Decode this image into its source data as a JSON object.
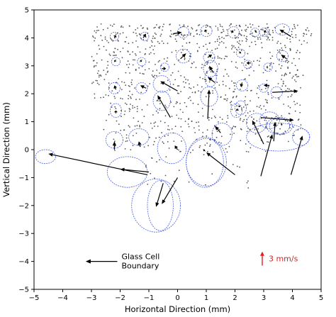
{
  "chart_data": {
    "type": "scatter",
    "title": "",
    "xlabel": "Horizontal Direction (mm)",
    "ylabel": "Vertical Direction (mm)",
    "xlim": [
      -5,
      5
    ],
    "ylim": [
      -5,
      5
    ],
    "xticks": [
      -5,
      -4,
      -3,
      -2,
      -1,
      0,
      1,
      2,
      3,
      4,
      5
    ],
    "yticks": [
      -5,
      -4,
      -3,
      -2,
      -1,
      0,
      1,
      2,
      3,
      4,
      5
    ],
    "grid": false,
    "colors": {
      "points": "#555555",
      "ellipses": "#4a5ee0",
      "arrows": "#000000",
      "scale_arrow": "#e02020"
    },
    "annotations": {
      "boundary_label_line1": "Glass Cell",
      "boundary_label_line2": "Boundary",
      "boundary_arrow": {
        "x": [
          -2.1,
          -3.2
        ],
        "y": [
          -4.0,
          -4.0
        ]
      },
      "scale_label": "3 mm/s",
      "scale_arrow": {
        "x": [
          2.95,
          2.95
        ],
        "y": [
          -4.15,
          -3.65
        ]
      }
    },
    "vectors": [
      {
        "x": -4.65,
        "y": -0.15,
        "dx": 0,
        "dy": 0,
        "rx": 0.4,
        "ry": 0.25
      },
      {
        "x": -4.5,
        "y": -0.1,
        "dx": 0,
        "dy": 0,
        "rx": 0,
        "ry": 0
      }
    ],
    "ellipse_vectors": [
      {
        "x0": -1.05,
        "y0": -0.9,
        "x1": -4.5,
        "y1": -0.15,
        "ex": -4.6,
        "ey": -0.25,
        "rx": 0.35,
        "ry": 0.25
      },
      {
        "x0": -1.0,
        "y0": -0.8,
        "x1": -2.0,
        "y1": -0.7,
        "ex": -1.75,
        "ey": -0.8,
        "rx": 0.7,
        "ry": 0.55
      },
      {
        "x0": -0.5,
        "y0": -1.2,
        "x1": -0.75,
        "y1": -2.05,
        "ex": -0.75,
        "ey": -2.0,
        "rx": 0.85,
        "ry": 0.95
      },
      {
        "x0": 0.0,
        "y0": -1.0,
        "x1": -0.55,
        "y1": -1.95,
        "ex": -0.6,
        "ey": -2.0,
        "rx": 0.45,
        "ry": 0.9
      },
      {
        "x0": 2.0,
        "y0": -0.9,
        "x1": 1.0,
        "y1": -0.1,
        "ex": 1.0,
        "ey": -0.45,
        "rx": 0.7,
        "ry": 0.85
      },
      {
        "x0": 0.9,
        "y0": -0.05,
        "x1": 0.95,
        "y1": 0.0,
        "ex": 0.95,
        "ey": -0.45,
        "rx": 0.65,
        "ry": 0.9
      },
      {
        "x0": 0.0,
        "y0": 0.0,
        "x1": -0.1,
        "y1": 0.15,
        "ex": -0.2,
        "ey": 0.05,
        "rx": 0.5,
        "ry": 0.55
      },
      {
        "x0": -1.3,
        "y0": 0.1,
        "x1": -1.35,
        "y1": 0.3,
        "ex": -1.35,
        "ey": 0.45,
        "rx": 0.35,
        "ry": 0.3
      },
      {
        "x0": -2.2,
        "y0": 0.0,
        "x1": -2.2,
        "y1": 0.3,
        "ex": -2.2,
        "ey": 0.35,
        "rx": 0.3,
        "ry": 0.3
      },
      {
        "x0": 1.5,
        "y0": 0.6,
        "x1": 1.3,
        "y1": 0.85,
        "ex": 1.55,
        "ey": 0.55,
        "rx": 0.35,
        "ry": 0.4
      },
      {
        "x0": 2.9,
        "y0": -0.95,
        "x1": 3.3,
        "y1": 0.55,
        "ex": 3.5,
        "ey": 0.45,
        "rx": 1.1,
        "ry": 0.5
      },
      {
        "x0": 3.95,
        "y0": -0.9,
        "x1": 4.35,
        "y1": 0.5,
        "ex": 4.3,
        "ey": 0.45,
        "rx": 0.3,
        "ry": 0.3
      },
      {
        "x0": 3.0,
        "y0": 0.2,
        "x1": 2.6,
        "y1": 1.05,
        "ex": 2.75,
        "ey": 0.95,
        "rx": 0.35,
        "ry": 0.35
      },
      {
        "x0": 3.35,
        "y0": 0.3,
        "x1": 3.4,
        "y1": 1.0,
        "ex": 3.5,
        "ey": 0.85,
        "rx": 0.4,
        "ry": 0.3
      },
      {
        "x0": 3.65,
        "y0": 0.9,
        "x1": 3.6,
        "y1": 0.9,
        "ex": 3.6,
        "ey": 0.85,
        "rx": 0.4,
        "ry": 0.3
      },
      {
        "x0": 2.9,
        "y0": 1.15,
        "x1": 4.05,
        "y1": 1.05,
        "ex": 3.2,
        "ey": 1.05,
        "rx": 0.35,
        "ry": 0.3
      },
      {
        "x0": -2.15,
        "y0": 1.3,
        "x1": -2.15,
        "y1": 1.4,
        "ex": -2.15,
        "ey": 1.4,
        "rx": 0.2,
        "ry": 0.25
      },
      {
        "x0": 2.1,
        "y0": 1.4,
        "x1": 2.05,
        "y1": 1.45,
        "ex": 2.05,
        "ey": 1.4,
        "rx": 0.2,
        "ry": 0.25
      },
      {
        "x0": -0.25,
        "y0": 1.15,
        "x1": -0.7,
        "y1": 1.95,
        "ex": -0.55,
        "ey": 1.75,
        "rx": 0.3,
        "ry": 0.35
      },
      {
        "x0": 1.05,
        "y0": 1.1,
        "x1": 1.1,
        "y1": 2.15,
        "ex": 1.1,
        "ey": 1.9,
        "rx": 0.3,
        "ry": 0.35
      },
      {
        "x0": 0.0,
        "y0": 2.1,
        "x1": -0.6,
        "y1": 2.45,
        "ex": -0.55,
        "ey": 2.35,
        "rx": 0.3,
        "ry": 0.3
      },
      {
        "x0": 1.3,
        "y0": 2.4,
        "x1": 1.05,
        "y1": 2.6,
        "ex": 1.15,
        "ey": 2.55,
        "rx": 0.2,
        "ry": 0.3
      },
      {
        "x0": -1.1,
        "y0": 2.2,
        "x1": -1.3,
        "y1": 2.3,
        "ex": -1.25,
        "ey": 2.2,
        "rx": 0.2,
        "ry": 0.2
      },
      {
        "x0": -2.15,
        "y0": 2.15,
        "x1": -2.2,
        "y1": 2.3,
        "ex": -2.2,
        "ey": 2.2,
        "rx": 0.2,
        "ry": 0.2
      },
      {
        "x0": 2.25,
        "y0": 2.4,
        "x1": 2.2,
        "y1": 2.25,
        "ex": 2.25,
        "ey": 2.3,
        "rx": 0.2,
        "ry": 0.2
      },
      {
        "x0": 3.2,
        "y0": 2.3,
        "x1": 3.0,
        "y1": 2.3,
        "ex": 3.0,
        "ey": 2.2,
        "rx": 0.15,
        "ry": 0.15
      },
      {
        "x0": 3.3,
        "y0": 2.05,
        "x1": 4.2,
        "y1": 2.1,
        "ex": 3.45,
        "ey": 2.05,
        "rx": 0.2,
        "ry": 0.2
      },
      {
        "x0": 2.15,
        "y0": 1.55,
        "x1": 2.15,
        "y1": 1.55,
        "ex": 2.2,
        "ey": 1.5,
        "rx": 0.2,
        "ry": 0.25
      },
      {
        "x0": 1.25,
        "y0": 2.75,
        "x1": 1.1,
        "y1": 3.0,
        "ex": 1.15,
        "ey": 2.9,
        "rx": 0.25,
        "ry": 0.3
      },
      {
        "x0": -2.15,
        "y0": 3.15,
        "x1": -2.2,
        "y1": 3.2,
        "ex": -2.15,
        "ey": 3.15,
        "rx": 0.15,
        "ry": 0.15
      },
      {
        "x0": -1.25,
        "y0": 3.15,
        "x1": -1.3,
        "y1": 3.2,
        "ex": -1.25,
        "ey": 3.15,
        "rx": 0.15,
        "ry": 0.15
      },
      {
        "x0": -0.55,
        "y0": 2.9,
        "x1": -0.4,
        "y1": 2.9,
        "ex": -0.45,
        "ey": 2.95,
        "rx": 0.15,
        "ry": 0.15
      },
      {
        "x0": 0.1,
        "y0": 3.25,
        "x1": 0.3,
        "y1": 3.45,
        "ex": 0.2,
        "ey": 3.35,
        "rx": 0.25,
        "ry": 0.25
      },
      {
        "x0": 1.05,
        "y0": 3.3,
        "x1": 1.2,
        "y1": 3.4,
        "ex": 1.1,
        "ey": 3.3,
        "rx": 0.2,
        "ry": 0.2
      },
      {
        "x0": 2.55,
        "y0": 3.1,
        "x1": 2.4,
        "y1": 3.1,
        "ex": 2.45,
        "ey": 3.05,
        "rx": 0.15,
        "ry": 0.15
      },
      {
        "x0": 3.15,
        "y0": 2.95,
        "x1": 3.1,
        "y1": 2.95,
        "ex": 3.15,
        "ey": 2.95,
        "rx": 0.15,
        "ry": 0.15
      },
      {
        "x0": 2.15,
        "y0": 3.45,
        "x1": 2.2,
        "y1": 3.5,
        "ex": 2.2,
        "ey": 3.45,
        "rx": 0.15,
        "ry": 0.15
      },
      {
        "x0": 3.8,
        "y0": 3.25,
        "x1": 3.6,
        "y1": 3.4,
        "ex": 3.65,
        "ey": 3.35,
        "rx": 0.2,
        "ry": 0.2
      },
      {
        "x0": -2.2,
        "y0": 4.0,
        "x1": -2.15,
        "y1": 4.1,
        "ex": -2.2,
        "ey": 4.05,
        "rx": 0.15,
        "ry": 0.15
      },
      {
        "x0": -1.2,
        "y0": 4.0,
        "x1": -1.1,
        "y1": 4.15,
        "ex": -1.15,
        "ey": 4.05,
        "rx": 0.15,
        "ry": 0.15
      },
      {
        "x0": -0.15,
        "y0": 4.15,
        "x1": 0.15,
        "y1": 4.2,
        "ex": 0.2,
        "ey": 4.2,
        "rx": 0.2,
        "ry": 0.2
      },
      {
        "x0": 1.0,
        "y0": 4.2,
        "x1": 0.95,
        "y1": 4.3,
        "ex": 1.0,
        "ey": 4.25,
        "rx": 0.2,
        "ry": 0.2
      },
      {
        "x0": 1.85,
        "y0": 4.25,
        "x1": 1.95,
        "y1": 4.2,
        "ex": 1.95,
        "ey": 4.2,
        "rx": 0.2,
        "ry": 0.2
      },
      {
        "x0": 2.75,
        "y0": 4.25,
        "x1": 2.7,
        "y1": 4.2,
        "ex": 2.7,
        "ey": 4.2,
        "rx": 0.15,
        "ry": 0.15
      },
      {
        "x0": 3.1,
        "y0": 4.2,
        "x1": 3.0,
        "y1": 4.25,
        "ex": 3.0,
        "ey": 4.2,
        "rx": 0.15,
        "ry": 0.15
      },
      {
        "x0": 3.95,
        "y0": 4.05,
        "x1": 3.55,
        "y1": 4.3,
        "ex": 3.65,
        "ey": 4.3,
        "rx": 0.25,
        "ry": 0.2
      }
    ],
    "particle_clusters": [
      {
        "xmin": -3.0,
        "xmax": 4.7,
        "ymin": 3.8,
        "ymax": 4.5,
        "n": 260
      },
      {
        "xmin": -3.0,
        "xmax": 4.4,
        "ymin": 2.9,
        "ymax": 3.8,
        "n": 180
      },
      {
        "xmin": -3.0,
        "xmax": 4.4,
        "ymin": 1.8,
        "ymax": 2.9,
        "n": 220
      },
      {
        "xmin": -2.6,
        "xmax": 4.3,
        "ymin": 0.7,
        "ymax": 1.8,
        "n": 200
      },
      {
        "xmin": -2.3,
        "xmax": 4.2,
        "ymin": -0.1,
        "ymax": 0.7,
        "n": 90
      },
      {
        "xmin": -1.2,
        "xmax": 2.5,
        "ymin": -1.5,
        "ymax": -0.1,
        "n": 25
      }
    ]
  }
}
